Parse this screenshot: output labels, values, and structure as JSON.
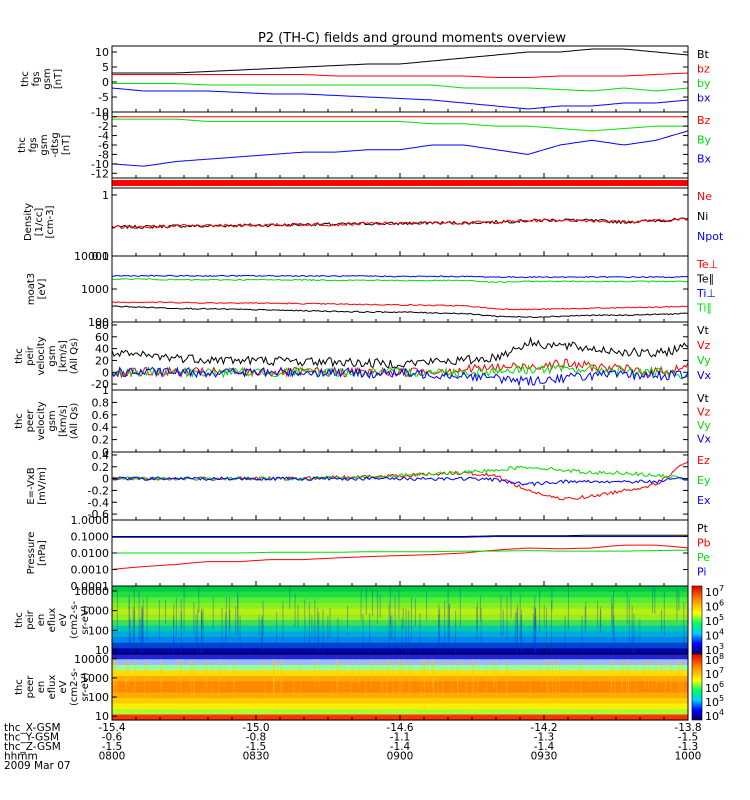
{
  "title": "P2 (TH-C) fields and ground moments overview",
  "colors": {
    "black": "#000000",
    "red": "#ff0000",
    "green": "#00dd00",
    "blue": "#0000ff"
  },
  "chart_data": [
    {
      "type": "line",
      "id": "p1",
      "ylabel": [
        "thc",
        "fgs",
        "gsm",
        "[nT]"
      ],
      "ylim": [
        -10,
        12
      ],
      "yticks": [
        10,
        5,
        0,
        -5,
        -10
      ],
      "series": [
        {
          "name": "Bt",
          "color": "black",
          "y": [
            3,
            3,
            3,
            3.5,
            4,
            4.5,
            5,
            5.5,
            6,
            6,
            7,
            8,
            9,
            10,
            10,
            11,
            11,
            10,
            9
          ]
        },
        {
          "name": "bz",
          "color": "red",
          "y": [
            2.5,
            2.5,
            2.5,
            2.5,
            2.5,
            2.5,
            2.5,
            2,
            2,
            2,
            2,
            2,
            1.5,
            1.5,
            2,
            2,
            2,
            2.5,
            3
          ]
        },
        {
          "name": "by",
          "color": "green",
          "y": [
            -0.5,
            -0.5,
            -0.5,
            -1,
            -1,
            -1,
            -1,
            -1,
            -1,
            -1,
            -1,
            -2,
            -2,
            -2,
            -2.5,
            -3,
            -2,
            -3,
            -2
          ]
        },
        {
          "name": "bx",
          "color": "blue",
          "y": [
            -2,
            -3,
            -3,
            -3,
            -3.5,
            -4,
            -4,
            -4.5,
            -5,
            -5.5,
            -6,
            -7,
            -8,
            -9,
            -8,
            -8,
            -7,
            -7,
            -6
          ]
        }
      ]
    },
    {
      "type": "line",
      "id": "p2",
      "ylabel": [
        "thc",
        "fgs",
        "gsm",
        "-dtsg",
        "[nT]"
      ],
      "ylim": [
        -13,
        1
      ],
      "yticks": [
        0,
        -2,
        -4,
        -6,
        -8,
        -10,
        -12
      ],
      "series": [
        {
          "name": "Bz",
          "color": "red",
          "y": [
            0,
            0,
            0,
            0,
            0,
            0,
            0,
            0,
            0,
            0,
            0,
            0,
            0,
            0,
            0,
            0,
            0,
            0,
            0
          ]
        },
        {
          "name": "By",
          "color": "green",
          "y": [
            -0.5,
            -0.5,
            -0.5,
            -1,
            -1,
            -1,
            -1,
            -1,
            -1,
            -1,
            -1.5,
            -1.5,
            -2,
            -2,
            -2.5,
            -3,
            -2.5,
            -2,
            -2
          ]
        },
        {
          "name": "Bx",
          "color": "blue",
          "y": [
            -10,
            -10.5,
            -9.5,
            -9,
            -8.5,
            -8,
            -7.5,
            -7.5,
            -7,
            -7,
            -6,
            -6,
            -7,
            -8,
            -6,
            -5,
            -6,
            -5,
            -3
          ]
        }
      ]
    },
    {
      "type": "line",
      "id": "p3",
      "ylabel": [
        "Density",
        "[1/cc]",
        "[cm-3]"
      ],
      "scale": "log",
      "ylim": [
        0.1,
        1.3
      ],
      "yticks": [
        1.0,
        0.1
      ],
      "legend": [
        "Ne",
        "Ni",
        "Npot"
      ],
      "series": [
        {
          "name": "Ni",
          "color": "black",
          "y": [
            0.3,
            0.3,
            0.31,
            0.31,
            0.32,
            0.32,
            0.33,
            0.33,
            0.34,
            0.34,
            0.35,
            0.35,
            0.36,
            0.38,
            0.39,
            0.38,
            0.36,
            0.38,
            0.4
          ]
        },
        {
          "name": "Ne",
          "color": "red",
          "y": [
            0.3,
            0.3,
            0.31,
            0.31,
            0.32,
            0.32,
            0.33,
            0.33,
            0.34,
            0.34,
            0.35,
            0.35,
            0.36,
            0.38,
            0.39,
            0.38,
            0.36,
            0.38,
            0.4
          ]
        }
      ]
    },
    {
      "type": "line",
      "id": "p4",
      "ylabel": [
        "moat3",
        "[eV]"
      ],
      "scale": "log",
      "ylim": [
        100,
        10000
      ],
      "yticks": [
        10000,
        1000,
        100
      ],
      "series": [
        {
          "name": "Te⊥",
          "color": "red",
          "y": [
            400,
            400,
            390,
            380,
            380,
            370,
            360,
            350,
            340,
            330,
            320,
            310,
            250,
            240,
            250,
            260,
            270,
            280,
            300
          ]
        },
        {
          "name": "Te∥",
          "color": "black",
          "y": [
            300,
            280,
            260,
            250,
            240,
            230,
            220,
            210,
            200,
            200,
            190,
            180,
            150,
            140,
            150,
            160,
            160,
            170,
            180
          ]
        },
        {
          "name": "Ti⊥",
          "color": "blue",
          "y": [
            2500,
            2500,
            2500,
            2500,
            2500,
            2500,
            2500,
            2450,
            2450,
            2400,
            2400,
            2400,
            2300,
            2300,
            2300,
            2300,
            2300,
            2300,
            2300
          ]
        },
        {
          "name": "Ti∥",
          "color": "green",
          "y": [
            2000,
            2000,
            1900,
            1900,
            1900,
            1900,
            1900,
            1850,
            1850,
            1800,
            1800,
            1800,
            1600,
            1700,
            1700,
            1700,
            1700,
            1700,
            1700
          ]
        }
      ]
    },
    {
      "type": "line",
      "id": "p5",
      "ylabel": [
        "thc",
        "peir",
        "velocity",
        "gsm",
        "[km/s]",
        "(All Qs)"
      ],
      "ylim": [
        -30,
        85
      ],
      "yticks": [
        80,
        60,
        40,
        20,
        0,
        -20
      ],
      "series": [
        {
          "name": "Vt",
          "color": "black",
          "y": [
            30,
            28,
            25,
            22,
            20,
            20,
            18,
            18,
            15,
            15,
            18,
            20,
            25,
            50,
            45,
            40,
            35,
            30,
            45
          ]
        },
        {
          "name": "Vz",
          "color": "red",
          "y": [
            0,
            0,
            0,
            0,
            0,
            0,
            0,
            0,
            0,
            0,
            2,
            5,
            8,
            10,
            15,
            10,
            5,
            0,
            10
          ]
        },
        {
          "name": "Vy",
          "color": "green",
          "y": [
            0,
            0,
            0,
            0,
            0,
            0,
            0,
            0,
            0,
            0,
            0,
            0,
            2,
            5,
            5,
            5,
            2,
            0,
            -10
          ]
        },
        {
          "name": "Vx",
          "color": "blue",
          "y": [
            0,
            0,
            0,
            0,
            0,
            0,
            0,
            0,
            -2,
            -2,
            -3,
            -5,
            -10,
            -15,
            -10,
            -5,
            -5,
            -5,
            -5
          ]
        }
      ]
    },
    {
      "type": "line",
      "id": "p6",
      "ylabel": [
        "thc",
        "peer",
        "velocity",
        "gsm",
        "[km/s]",
        "(All Qs)"
      ],
      "ylim": [
        0,
        1
      ],
      "yticks": [
        1.0,
        0.8,
        0.6,
        0.4,
        0.2,
        0.0
      ],
      "legend": [
        "Vt",
        "Vz",
        "Vy",
        "Vx"
      ],
      "series": []
    },
    {
      "type": "line",
      "id": "p7",
      "ylabel": [
        "E=-VxB",
        "[mV/m]"
      ],
      "ylim": [
        -0.7,
        0.45
      ],
      "yticks": [
        0.4,
        0.2,
        0.0,
        -0.2,
        -0.4,
        -0.6
      ],
      "series": [
        {
          "name": "Ez",
          "color": "red",
          "y": [
            0,
            0,
            0,
            0,
            0,
            0,
            0,
            0.02,
            0.03,
            0.05,
            0.08,
            0.1,
            0.05,
            -0.2,
            -0.35,
            -0.3,
            -0.2,
            -0.1,
            0.3
          ]
        },
        {
          "name": "Ey",
          "color": "green",
          "y": [
            0,
            0,
            0,
            0,
            0,
            0,
            0,
            0.02,
            0.03,
            0.05,
            0.08,
            0.1,
            0.15,
            0.2,
            0.15,
            0.1,
            0.1,
            0.05,
            0
          ]
        },
        {
          "name": "Ex",
          "color": "blue",
          "y": [
            0,
            0,
            0,
            0,
            0,
            0,
            0,
            0,
            0,
            0,
            0,
            0,
            -0.02,
            -0.1,
            -0.05,
            -0.05,
            -0.05,
            -0.05,
            0
          ]
        }
      ]
    },
    {
      "type": "line",
      "id": "p8",
      "ylabel": [
        "Pressure",
        "[nPa]"
      ],
      "scale": "log",
      "ylim": [
        0.0001,
        1
      ],
      "yticks": [
        1.0,
        0.1,
        0.01,
        0.001,
        0.0001
      ],
      "ticklabels": [
        "1.0000",
        "0.1000",
        "0.0100",
        "0.0010",
        "0.0001"
      ],
      "series": [
        {
          "name": "Pt",
          "color": "black",
          "y": [
            0.1,
            0.1,
            0.1,
            0.1,
            0.1,
            0.1,
            0.1,
            0.1,
            0.1,
            0.1,
            0.1,
            0.1,
            0.11,
            0.11,
            0.11,
            0.12,
            0.12,
            0.12,
            0.12
          ]
        },
        {
          "name": "Pb",
          "color": "red",
          "y": [
            0.001,
            0.0015,
            0.002,
            0.003,
            0.003,
            0.004,
            0.004,
            0.005,
            0.006,
            0.007,
            0.008,
            0.01,
            0.015,
            0.02,
            0.018,
            0.02,
            0.03,
            0.03,
            0.02
          ]
        },
        {
          "name": "Pe",
          "color": "green",
          "y": [
            0.01,
            0.01,
            0.01,
            0.01,
            0.01,
            0.011,
            0.011,
            0.011,
            0.012,
            0.012,
            0.012,
            0.013,
            0.013,
            0.014,
            0.013,
            0.013,
            0.013,
            0.014,
            0.015
          ]
        },
        {
          "name": "Pi",
          "color": "blue",
          "y": [
            0.09,
            0.09,
            0.09,
            0.09,
            0.09,
            0.09,
            0.09,
            0.09,
            0.09,
            0.09,
            0.09,
            0.09,
            0.1,
            0.1,
            0.1,
            0.1,
            0.1,
            0.1,
            0.1
          ]
        }
      ]
    },
    {
      "type": "heatmap",
      "id": "p9",
      "ylabel": [
        "thc",
        "peir",
        "en",
        "eflux",
        "eV",
        "(cm2-s-",
        "sr-eV)"
      ],
      "scale": "log",
      "yticks": [
        10000,
        1000,
        100,
        10
      ],
      "colorbar": {
        "ticks": [
          "10",
          "10",
          "10",
          "10",
          "10"
        ],
        "exponents": [
          "7",
          "6",
          "5",
          "4",
          "3"
        ]
      }
    },
    {
      "type": "heatmap",
      "id": "p10",
      "ylabel": [
        "thc",
        "peer",
        "en",
        "eflux",
        "eV",
        "(cm2-s-",
        "sr-eV)"
      ],
      "scale": "log",
      "yticks": [
        10000,
        1000,
        100,
        10
      ],
      "colorbar": {
        "ticks": [
          "10",
          "10",
          "10",
          "10",
          "10"
        ],
        "exponents": [
          "8",
          "7",
          "6",
          "5",
          "4"
        ]
      }
    }
  ],
  "xaxis": {
    "row_labels": [
      "thc_X-GSM",
      "thc_Y-GSM",
      "thc_Z-GSM",
      "hhmm",
      "2009 Mar 07"
    ],
    "columns": [
      [
        "-15.4",
        "-0.6",
        "-1.5",
        "0800"
      ],
      [
        "-15.0",
        "-0.8",
        "-1.5",
        "0830"
      ],
      [
        "-14.6",
        "-1.1",
        "-1.4",
        "0900"
      ],
      [
        "-14.2",
        "-1.3",
        "-1.4",
        "0930"
      ],
      [
        "-13.8",
        "-1.5",
        "-1.3",
        "1000"
      ]
    ]
  }
}
